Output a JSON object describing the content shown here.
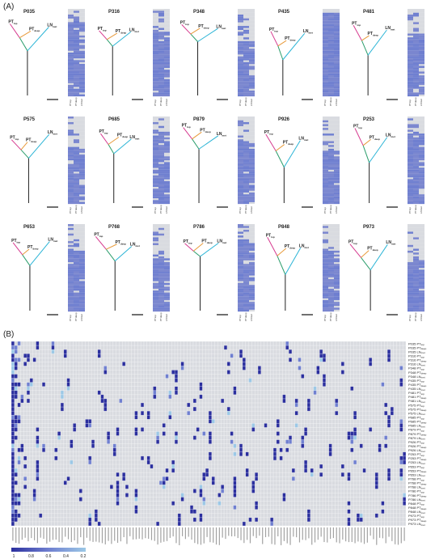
{
  "figure": {
    "panel_a_label": "(A)",
    "panel_b_label": "(B)"
  },
  "colors": {
    "pt_top": "#d63a8f",
    "pt_deep": "#e89a3a",
    "ln": "#2ab4d6",
    "trunk": "#2a9d6b",
    "root": "#222222",
    "heat_high": "#2b2f9e",
    "heat_mid": "#6f7fd0",
    "heat_low": "#9cc8e6",
    "heat_empty": "#d9dbe0"
  },
  "samples": [
    {
      "id": "P035",
      "labels": [
        "PT",
        "PT",
        "LN"
      ],
      "subs": [
        "top",
        "deep",
        "met"
      ]
    },
    {
      "id": "P316",
      "labels": [
        "PT",
        "PT",
        "LN"
      ],
      "subs": [
        "top",
        "deep",
        "met"
      ]
    },
    {
      "id": "P348",
      "labels": [
        "PT",
        "PT",
        "LN"
      ],
      "subs": [
        "top",
        "deep",
        "met"
      ]
    },
    {
      "id": "P435",
      "labels": [
        "PT",
        "PT",
        "LN"
      ],
      "subs": [
        "top",
        "deep",
        "met"
      ]
    },
    {
      "id": "P481",
      "labels": [
        "PT",
        "PT",
        "LN"
      ],
      "subs": [
        "top",
        "deep",
        "met"
      ]
    },
    {
      "id": "P575",
      "labels": [
        "PT",
        "PT",
        "LN"
      ],
      "subs": [
        "top",
        "deep",
        "met"
      ]
    },
    {
      "id": "P685",
      "labels": [
        "PT",
        "PT",
        "LN"
      ],
      "subs": [
        "top",
        "deep",
        "met"
      ]
    },
    {
      "id": "P879",
      "labels": [
        "PT",
        "PT",
        "LN"
      ],
      "subs": [
        "top",
        "deep",
        "met"
      ]
    },
    {
      "id": "P926",
      "labels": [
        "PT",
        "PT",
        "LN"
      ],
      "subs": [
        "top",
        "deep",
        "met"
      ]
    },
    {
      "id": "P253",
      "labels": [
        "PT",
        "PT",
        "LN"
      ],
      "subs": [
        "top",
        "deep",
        "met"
      ]
    },
    {
      "id": "P653",
      "labels": [
        "PT",
        "PT",
        "LN"
      ],
      "subs": [
        "top",
        "deep",
        "met"
      ]
    },
    {
      "id": "P768",
      "labels": [
        "PT",
        "PT",
        "LN"
      ],
      "subs": [
        "top",
        "deep",
        "met"
      ]
    },
    {
      "id": "P786",
      "labels": [
        "PT",
        "PT",
        "LN"
      ],
      "subs": [
        "top",
        "deep",
        "met"
      ]
    },
    {
      "id": "P848",
      "labels": [
        "PT",
        "PT",
        "LN"
      ],
      "subs": [
        "top",
        "deep",
        "met"
      ]
    },
    {
      "id": "P973",
      "labels": [
        "PT",
        "PT",
        "LN"
      ],
      "subs": [
        "top",
        "deep",
        "met"
      ]
    }
  ],
  "heatmap_rows": [
    "P035 PT",
    "P035 PT",
    "P035 LN",
    "P316 PT",
    "P316 PT",
    "P316 LN",
    "P348 PT",
    "P348 PT",
    "P348 LN",
    "P435 PT",
    "P435 PT",
    "P435 LN",
    "P481 PT",
    "P481 PT",
    "P481 LN",
    "P575 PT",
    "P575 PT",
    "P575 LN",
    "P685 PT",
    "P685 PT",
    "P685 LN",
    "P879 PT",
    "P879 PT",
    "P879 LN",
    "P926 PT",
    "P926 PT",
    "P926 LN",
    "P253 PT",
    "P253 PT",
    "P253 LN",
    "P653 PT",
    "P653 PT",
    "P653 LN",
    "P768 PT",
    "P768 PT",
    "P768 LN",
    "P786 PT",
    "P786 PT",
    "P786 LN",
    "P848 PT",
    "P848 PT",
    "P848 LN",
    "P973 PT",
    "P973 PT",
    "P973 LN"
  ],
  "heatmap_row_subs": [
    "top",
    "deep",
    "met",
    "top",
    "deep",
    "met",
    "top",
    "deep",
    "met",
    "top",
    "deep",
    "met",
    "top",
    "deep",
    "met",
    "top",
    "deep",
    "met",
    "top",
    "deep",
    "met",
    "top",
    "deep",
    "met",
    "top",
    "deep",
    "met",
    "top",
    "deep",
    "met",
    "top",
    "deep",
    "met",
    "top",
    "deep",
    "met",
    "top",
    "deep",
    "met",
    "top",
    "deep",
    "met",
    "top",
    "deep",
    "met"
  ],
  "legend": {
    "ticks": [
      "1",
      "0.8",
      "0.6",
      "0.4",
      "0.2"
    ]
  },
  "chart_data": {
    "type": "heatmap",
    "n_cols": 128,
    "n_rows": 45,
    "value_range": [
      0,
      1
    ]
  }
}
